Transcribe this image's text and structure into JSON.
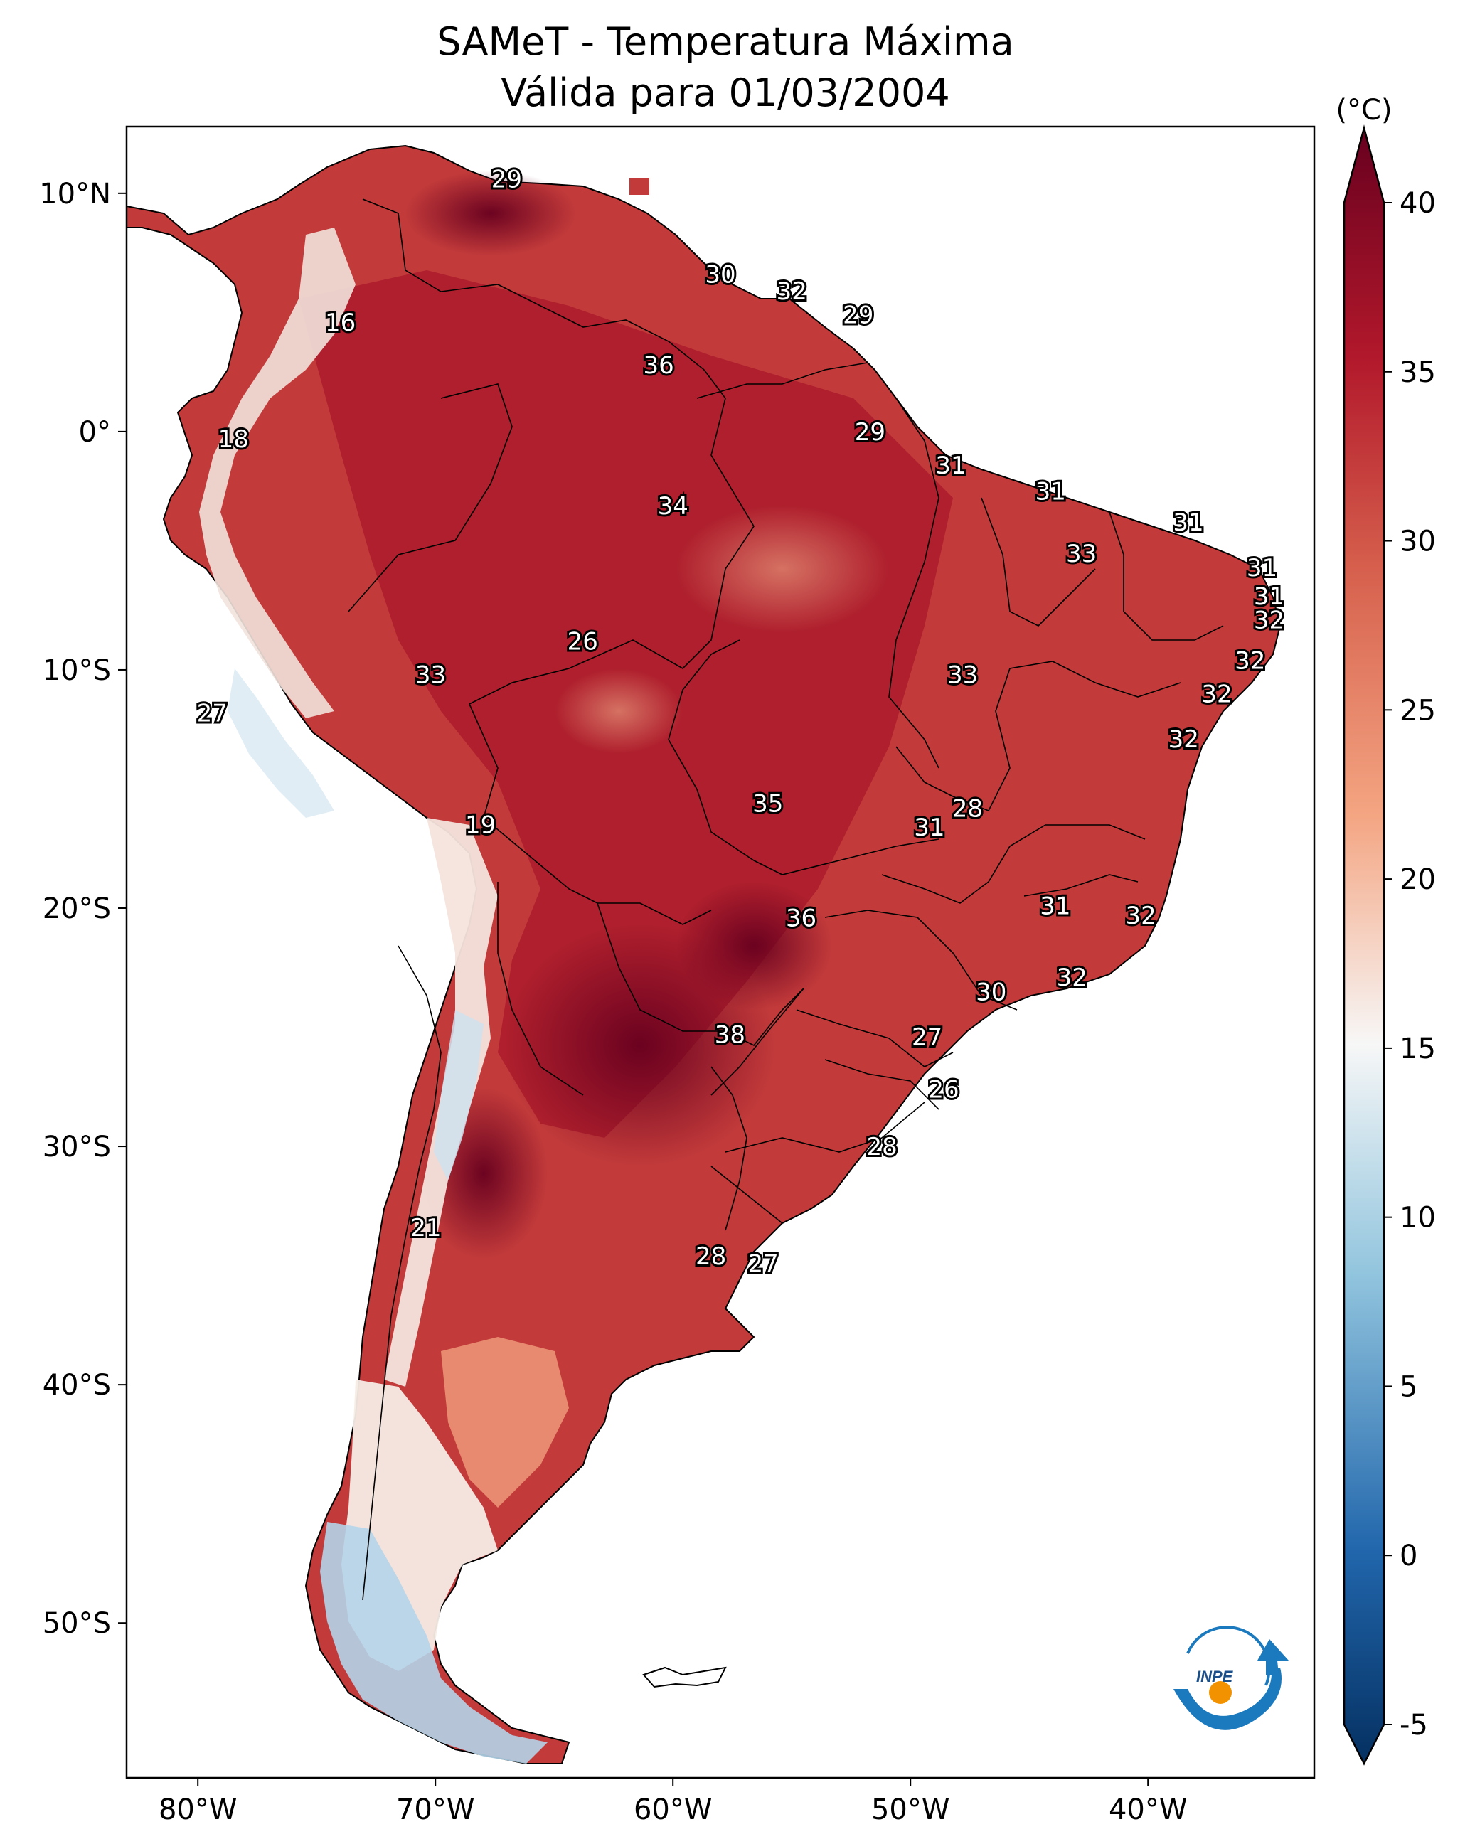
{
  "title": {
    "line1": "SAMeT - Temperatura Máxima",
    "line2": "Válida para 01/03/2004"
  },
  "colorbar": {
    "unit": "(°C)",
    "ticks": [
      -5,
      0,
      5,
      10,
      15,
      20,
      25,
      30,
      35,
      40
    ],
    "range": [
      -5,
      40
    ],
    "colors": {
      "min": "#053061",
      "blue": "#2166ac",
      "lightblue": "#92c5de",
      "white": "#f7f7f7",
      "salmon": "#f4a582",
      "red": "#d6604d",
      "darkred": "#b2182b",
      "max": "#67001f"
    }
  },
  "axes": {
    "lon_ticks": [
      "80°W",
      "70°W",
      "60°W",
      "50°W",
      "40°W"
    ],
    "lat_ticks": [
      "10°N",
      "0°",
      "10°S",
      "20°S",
      "30°S",
      "40°S",
      "50°S"
    ]
  },
  "logo": {
    "text": "INPE"
  },
  "labels": [
    {
      "v": "29",
      "lon": -67.0,
      "lat": 10.6
    },
    {
      "v": "30",
      "lon": -58.0,
      "lat": 6.6
    },
    {
      "v": "32",
      "lon": -55.0,
      "lat": 5.9
    },
    {
      "v": "29",
      "lon": -52.2,
      "lat": 4.9
    },
    {
      "v": "16",
      "lon": -74.0,
      "lat": 4.6
    },
    {
      "v": "36",
      "lon": -60.6,
      "lat": 2.8
    },
    {
      "v": "29",
      "lon": -51.7,
      "lat": 0.0
    },
    {
      "v": "18",
      "lon": -78.5,
      "lat": -0.3
    },
    {
      "v": "31",
      "lon": -48.3,
      "lat": -1.4
    },
    {
      "v": "31",
      "lon": -44.1,
      "lat": -2.5
    },
    {
      "v": "34",
      "lon": -60.0,
      "lat": -3.1
    },
    {
      "v": "31",
      "lon": -38.3,
      "lat": -3.8
    },
    {
      "v": "33",
      "lon": -42.8,
      "lat": -5.1
    },
    {
      "v": "31",
      "lon": -35.2,
      "lat": -5.7
    },
    {
      "v": "31",
      "lon": -34.9,
      "lat": -6.9
    },
    {
      "v": "32",
      "lon": -34.9,
      "lat": -7.9
    },
    {
      "v": "26",
      "lon": -63.8,
      "lat": -8.8
    },
    {
      "v": "32",
      "lon": -35.7,
      "lat": -9.6
    },
    {
      "v": "33",
      "lon": -70.2,
      "lat": -10.2
    },
    {
      "v": "33",
      "lon": -47.8,
      "lat": -10.2
    },
    {
      "v": "32",
      "lon": -37.1,
      "lat": -11.0
    },
    {
      "v": "27",
      "lon": -79.4,
      "lat": -11.8
    },
    {
      "v": "32",
      "lon": -38.5,
      "lat": -12.9
    },
    {
      "v": "35",
      "lon": -56.0,
      "lat": -15.6
    },
    {
      "v": "28",
      "lon": -47.6,
      "lat": -15.8
    },
    {
      "v": "19",
      "lon": -68.1,
      "lat": -16.5
    },
    {
      "v": "31",
      "lon": -49.2,
      "lat": -16.6
    },
    {
      "v": "31",
      "lon": -43.9,
      "lat": -19.9
    },
    {
      "v": "36",
      "lon": -54.6,
      "lat": -20.4
    },
    {
      "v": "32",
      "lon": -40.3,
      "lat": -20.3
    },
    {
      "v": "32",
      "lon": -43.2,
      "lat": -22.9
    },
    {
      "v": "30",
      "lon": -46.6,
      "lat": -23.5
    },
    {
      "v": "38",
      "lon": -57.6,
      "lat": -25.3
    },
    {
      "v": "27",
      "lon": -49.3,
      "lat": -25.4
    },
    {
      "v": "26",
      "lon": -48.6,
      "lat": -27.6
    },
    {
      "v": "28",
      "lon": -51.2,
      "lat": -30.0
    },
    {
      "v": "21",
      "lon": -70.4,
      "lat": -33.4
    },
    {
      "v": "28",
      "lon": -58.4,
      "lat": -34.6
    },
    {
      "v": "27",
      "lon": -56.2,
      "lat": -34.9
    }
  ]
}
